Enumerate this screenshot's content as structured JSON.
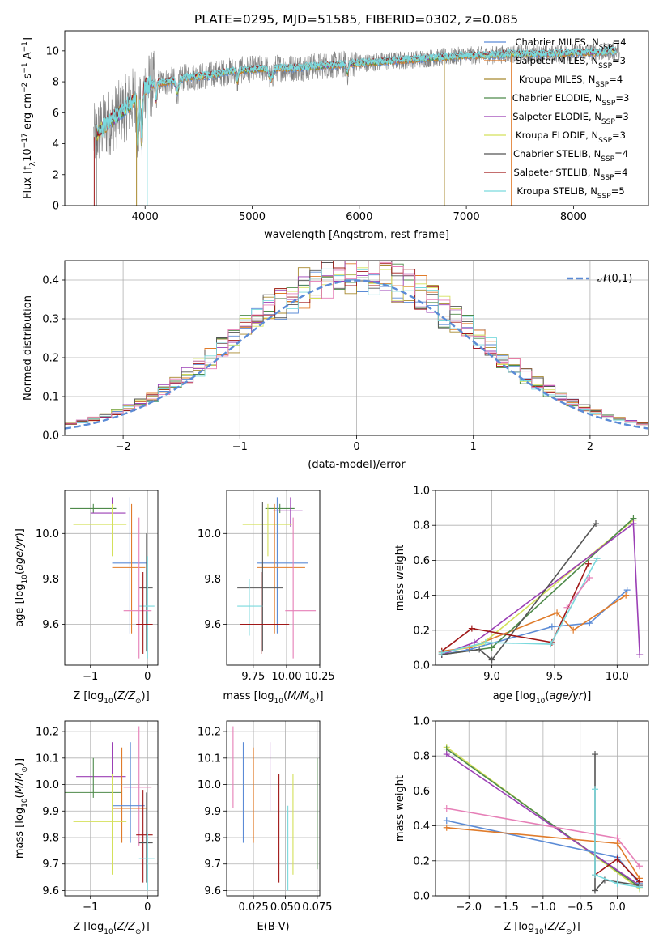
{
  "title": "PLATE=0295, MJD=51585, FIBERID=0302, z=0.085",
  "colors": {
    "chabrier_miles": "#5b8bd6",
    "salpeter_miles": "#e07b2a",
    "kroupa_miles": "#a8892e",
    "chabrier_elodie": "#4e8a4a",
    "salpeter_elodie": "#9b3fb5",
    "kroupa_elodie": "#d4e05a",
    "chabrier_stelib": "#555555",
    "salpeter_stelib": "#a01818",
    "kroupa_stelib": "#7ad9dd",
    "pink": "#e67fb7",
    "data": "#808080",
    "normal": "#5b8bd6",
    "grid": "#b0b0b0"
  },
  "chart_data": [
    {
      "id": "spectrum",
      "type": "line",
      "xlabel": "wavelength [Angstrom, rest frame]",
      "ylabel": "Flux [f",
      "xlim": [
        3250,
        8700
      ],
      "ylim": [
        0,
        11.3
      ],
      "xticks": [
        4000,
        5000,
        6000,
        7000,
        8000
      ],
      "yticks": [
        0,
        2,
        4,
        6,
        8,
        10
      ],
      "grid": false,
      "legend_position": "right",
      "legend": [
        {
          "key": "chabrier_miles",
          "label": "Chabrier MILES, N",
          "sub": "SSP",
          "suffix": "=4"
        },
        {
          "key": "salpeter_miles",
          "label": "Salpeter MILES, N",
          "sub": "SSP",
          "suffix": "=3"
        },
        {
          "key": "kroupa_miles",
          "label": "Kroupa MILES, N",
          "sub": "SSP",
          "suffix": "=4"
        },
        {
          "key": "chabrier_elodie",
          "label": "Chabrier ELODIE, N",
          "sub": "SSP",
          "suffix": "=3"
        },
        {
          "key": "salpeter_elodie",
          "label": "Salpeter ELODIE, N",
          "sub": "SSP",
          "suffix": "=3"
        },
        {
          "key": "kroupa_elodie",
          "label": "Kroupa ELODIE, N",
          "sub": "SSP",
          "suffix": "=3"
        },
        {
          "key": "chabrier_stelib",
          "label": "Chabrier STELIB, N",
          "sub": "SSP",
          "suffix": "=4"
        },
        {
          "key": "salpeter_stelib",
          "label": "Salpeter STELIB, N",
          "sub": "SSP",
          "suffix": "=4"
        },
        {
          "key": "kroupa_stelib",
          "label": "Kroupa STELIB, N",
          "sub": "SSP",
          "suffix": "=5"
        }
      ],
      "continuum": [
        [
          3520,
          4.4
        ],
        [
          3600,
          5.0
        ],
        [
          3700,
          5.6
        ],
        [
          3800,
          6.2
        ],
        [
          3900,
          6.9
        ],
        [
          3950,
          7.4
        ],
        [
          4000,
          7.7
        ],
        [
          4100,
          7.9
        ],
        [
          4200,
          8.0
        ],
        [
          4400,
          8.3
        ],
        [
          4600,
          8.4
        ],
        [
          4800,
          8.7
        ],
        [
          5000,
          8.8
        ],
        [
          5200,
          8.9
        ],
        [
          5400,
          8.9
        ],
        [
          5600,
          9.0
        ],
        [
          5800,
          9.1
        ],
        [
          6000,
          9.2
        ],
        [
          6200,
          9.3
        ],
        [
          6400,
          9.4
        ],
        [
          6600,
          9.5
        ],
        [
          6800,
          9.6
        ],
        [
          7000,
          9.7
        ],
        [
          7200,
          9.7
        ],
        [
          7400,
          9.8
        ],
        [
          7600,
          9.8
        ],
        [
          7800,
          9.8
        ],
        [
          8000,
          9.9
        ],
        [
          8200,
          9.9
        ],
        [
          8400,
          10.0
        ]
      ]
    },
    {
      "id": "residuals",
      "type": "histogram",
      "xlabel": "(data-model)/error",
      "ylabel": "Normed distribution",
      "xlim": [
        -2.5,
        2.5
      ],
      "ylim": [
        0,
        0.45
      ],
      "xticks": [
        -2,
        -1,
        0,
        1,
        2
      ],
      "yticks": [
        0.0,
        0.1,
        0.2,
        0.3,
        0.4
      ],
      "grid": true,
      "legend_position": "top-right",
      "normal_label": "𝒩(0,1)",
      "bin_width": 0.1
    },
    {
      "id": "age_vs_Z",
      "type": "errorbar",
      "xlabel": "Z [log",
      "ylabel": "age  [log",
      "xlim": [
        -1.45,
        0.18
      ],
      "ylim": [
        9.42,
        10.19
      ],
      "xticks": [
        -1,
        0
      ],
      "yticks": [
        9.6,
        9.8,
        10.0
      ],
      "grid": true,
      "points": [
        {
          "c": "chabrier_elodie",
          "x": -0.95,
          "xe": [
            -1.35,
            -0.55
          ],
          "y": 10.11,
          "ye": [
            10.09,
            10.13
          ]
        },
        {
          "c": "salpeter_elodie",
          "x": -0.62,
          "xe": [
            -1.0,
            -0.38
          ],
          "y": 10.09,
          "ye": [
            10.03,
            10.16
          ]
        },
        {
          "c": "kroupa_elodie",
          "x": -0.62,
          "xe": [
            -1.3,
            -0.37
          ],
          "y": 10.04,
          "ye": [
            9.9,
            10.13
          ]
        },
        {
          "c": "chabrier_miles",
          "x": -0.31,
          "xe": [
            -0.62,
            -0.02
          ],
          "y": 9.87,
          "ye": [
            9.56,
            10.16
          ]
        },
        {
          "c": "salpeter_miles",
          "x": -0.28,
          "xe": [
            -0.62,
            -0.04
          ],
          "y": 9.85,
          "ye": [
            9.56,
            10.13
          ]
        },
        {
          "c": "chabrier_stelib",
          "x": -0.02,
          "xe": [
            -0.15,
            0.09
          ],
          "y": 9.76,
          "ye": [
            9.48,
            10.0
          ]
        },
        {
          "c": "kroupa_stelib",
          "x": 0.0,
          "xe": [
            -0.15,
            0.12
          ],
          "y": 9.68,
          "ye": [
            9.45,
            9.9
          ]
        },
        {
          "c": "pink",
          "x": -0.15,
          "xe": [
            -0.42,
            0.07
          ],
          "y": 9.66,
          "ye": [
            9.45,
            10.07
          ]
        },
        {
          "c": "salpeter_stelib",
          "x": -0.08,
          "xe": [
            -0.2,
            0.09
          ],
          "y": 9.6,
          "ye": [
            9.47,
            9.83
          ]
        }
      ]
    },
    {
      "id": "age_vs_mass",
      "type": "errorbar",
      "xlabel": "mass [log",
      "ylabel": "",
      "xlim": [
        9.55,
        10.25
      ],
      "ylim": [
        9.42,
        10.19
      ],
      "xticks": [
        9.75,
        10.0,
        10.25
      ],
      "yticks": [
        9.6,
        9.8,
        10.0
      ],
      "grid": true,
      "points": [
        {
          "c": "chabrier_elodie",
          "x": 9.95,
          "xe": [
            9.84,
            10.06
          ],
          "y": 10.11,
          "ye": [
            10.09,
            10.13
          ]
        },
        {
          "c": "salpeter_elodie",
          "x": 10.03,
          "xe": [
            9.9,
            10.12
          ],
          "y": 10.1,
          "ye": [
            10.03,
            10.16
          ]
        },
        {
          "c": "kroupa_elodie",
          "x": 9.86,
          "xe": [
            9.67,
            10.04
          ],
          "y": 10.04,
          "ye": [
            9.9,
            10.13
          ]
        },
        {
          "c": "chabrier_miles",
          "x": 9.93,
          "xe": [
            9.78,
            10.16
          ],
          "y": 9.87,
          "ye": [
            9.56,
            10.16
          ]
        },
        {
          "c": "salpeter_miles",
          "x": 9.91,
          "xe": [
            9.78,
            10.14
          ],
          "y": 9.85,
          "ye": [
            9.56,
            10.13
          ]
        },
        {
          "c": "chabrier_stelib",
          "x": 9.82,
          "xe": [
            9.63,
            9.97
          ],
          "y": 9.76,
          "ye": [
            9.48,
            10.14
          ]
        },
        {
          "c": "kroupa_stelib",
          "x": 9.72,
          "xe": [
            9.63,
            9.82
          ],
          "y": 9.68,
          "ye": [
            9.55,
            9.8
          ]
        },
        {
          "c": "pink",
          "x": 10.05,
          "xe": [
            9.99,
            10.22
          ],
          "y": 9.66,
          "ye": [
            9.45,
            10.07
          ]
        },
        {
          "c": "salpeter_stelib",
          "x": 9.81,
          "xe": [
            9.65,
            10.02
          ],
          "y": 9.6,
          "ye": [
            9.47,
            9.83
          ]
        }
      ]
    },
    {
      "id": "weight_vs_age",
      "type": "line",
      "xlabel": "age  [log",
      "ylabel": "mass weight",
      "xlim": [
        8.55,
        10.25
      ],
      "ylim": [
        0,
        1.0
      ],
      "xticks": [
        9.0,
        9.5,
        10.0
      ],
      "yticks": [
        0.0,
        0.2,
        0.4,
        0.6,
        0.8,
        1.0
      ],
      "grid": true,
      "series": [
        {
          "c": "chabrier_miles",
          "x": [
            8.6,
            8.82,
            9.48,
            9.78,
            10.08
          ],
          "y": [
            0.06,
            0.09,
            0.22,
            0.24,
            0.43
          ]
        },
        {
          "c": "salpeter_miles",
          "x": [
            8.6,
            8.82,
            9.52,
            9.65,
            10.07
          ],
          "y": [
            0.08,
            0.1,
            0.3,
            0.2,
            0.4
          ]
        },
        {
          "c": "kroupa_elodie",
          "x": [
            8.6,
            8.92,
            10.13
          ],
          "y": [
            0.07,
            0.12,
            0.83
          ]
        },
        {
          "c": "chabrier_elodie",
          "x": [
            8.6,
            9.0,
            10.13
          ],
          "y": [
            0.06,
            0.1,
            0.84
          ]
        },
        {
          "c": "salpeter_elodie",
          "x": [
            8.6,
            8.86,
            10.13,
            10.18
          ],
          "y": [
            0.06,
            0.13,
            0.81,
            0.06
          ]
        },
        {
          "c": "chabrier_stelib",
          "x": [
            8.6,
            8.9,
            9.0,
            9.83
          ],
          "y": [
            0.06,
            0.09,
            0.03,
            0.81
          ]
        },
        {
          "c": "salpeter_stelib",
          "x": [
            8.6,
            8.84,
            9.48,
            9.77
          ],
          "y": [
            0.08,
            0.21,
            0.13,
            0.58
          ]
        },
        {
          "c": "kroupa_stelib",
          "x": [
            8.6,
            8.95,
            9.47,
            9.84
          ],
          "y": [
            0.07,
            0.13,
            0.12,
            0.61
          ]
        },
        {
          "c": "pink",
          "x": [
            9.6,
            9.78
          ],
          "y": [
            0.33,
            0.5
          ]
        }
      ]
    },
    {
      "id": "mass_vs_Z",
      "type": "errorbar",
      "xlabel": "Z [log",
      "ylabel": "mass [log",
      "xlim": [
        -1.45,
        0.18
      ],
      "ylim": [
        9.58,
        10.24
      ],
      "xticks": [
        -1,
        0
      ],
      "yticks": [
        9.6,
        9.7,
        9.8,
        9.9,
        10.0,
        10.1,
        10.2
      ],
      "grid": true,
      "points": [
        {
          "c": "salpeter_elodie",
          "x": -0.62,
          "xe": [
            -1.25,
            -0.38
          ],
          "y": 10.03,
          "ye": [
            9.9,
            10.16
          ]
        },
        {
          "c": "pink",
          "x": -0.15,
          "xe": [
            -0.42,
            0.07
          ],
          "y": 9.99,
          "ye": [
            9.77,
            10.22
          ]
        },
        {
          "c": "chabrier_elodie",
          "x": -0.95,
          "xe": [
            -1.45,
            -0.45
          ],
          "y": 9.97,
          "ye": [
            9.95,
            10.1
          ]
        },
        {
          "c": "salpeter_miles",
          "x": -0.45,
          "xe": [
            -0.6,
            -0.02
          ],
          "y": 9.91,
          "ye": [
            9.78,
            10.14
          ]
        },
        {
          "c": "chabrier_miles",
          "x": -0.3,
          "xe": [
            -0.62,
            -0.05
          ],
          "y": 9.92,
          "ye": [
            9.78,
            10.16
          ]
        },
        {
          "c": "kroupa_elodie",
          "x": -0.62,
          "xe": [
            -1.3,
            -0.37
          ],
          "y": 9.86,
          "ye": [
            9.66,
            10.04
          ]
        },
        {
          "c": "salpeter_stelib",
          "x": -0.08,
          "xe": [
            -0.2,
            0.09
          ],
          "y": 9.81,
          "ye": [
            9.63,
            9.98
          ]
        },
        {
          "c": "chabrier_stelib",
          "x": -0.02,
          "xe": [
            -0.15,
            0.09
          ],
          "y": 9.78,
          "ye": [
            9.63,
            9.97
          ]
        },
        {
          "c": "kroupa_stelib",
          "x": 0.0,
          "xe": [
            -0.15,
            0.12
          ],
          "y": 9.72,
          "ye": [
            9.6,
            9.82
          ]
        }
      ]
    },
    {
      "id": "mass_vs_ebv",
      "type": "errorbar",
      "xlabel": "E(B-V)",
      "ylabel": "",
      "xlim": [
        0.004,
        0.077
      ],
      "ylim": [
        9.58,
        10.24
      ],
      "xticks": [
        0.025,
        0.05,
        0.075
      ],
      "yticks": [
        9.6,
        9.7,
        9.8,
        9.9,
        10.0,
        10.1,
        10.2
      ],
      "grid": true,
      "points": [
        {
          "c": "pink",
          "x": 0.009,
          "y": 10.05,
          "ye": [
            9.91,
            10.22
          ]
        },
        {
          "c": "chabrier_miles",
          "x": 0.017,
          "y": 9.95,
          "ye": [
            9.78,
            10.16
          ]
        },
        {
          "c": "salpeter_miles",
          "x": 0.025,
          "y": 9.94,
          "ye": [
            9.78,
            10.14
          ]
        },
        {
          "c": "salpeter_elodie",
          "x": 0.038,
          "y": 10.03,
          "ye": [
            9.9,
            10.16
          ]
        },
        {
          "c": "salpeter_stelib",
          "x": 0.045,
          "y": 9.85,
          "ye": [
            9.63,
            10.04
          ]
        },
        {
          "c": "kroupa_stelib",
          "x": 0.052,
          "y": 9.72,
          "ye": [
            9.6,
            9.92
          ]
        },
        {
          "c": "kroupa_elodie",
          "x": 0.056,
          "y": 9.85,
          "ye": [
            9.66,
            10.04
          ]
        },
        {
          "c": "chabrier_elodie",
          "x": 0.075,
          "y": 9.88,
          "ye": [
            9.68,
            10.1
          ]
        }
      ]
    },
    {
      "id": "weight_vs_Z",
      "type": "line",
      "xlabel": "Z [log",
      "ylabel": "mass weight",
      "xlim": [
        -2.45,
        0.42
      ],
      "ylim": [
        0,
        1.0
      ],
      "xticks": [
        -2.0,
        -1.5,
        -1.0,
        -0.5,
        0.0
      ],
      "yticks": [
        0.0,
        0.2,
        0.4,
        0.6,
        0.8,
        1.0
      ],
      "grid": true,
      "series": [
        {
          "c": "kroupa_elodie",
          "x": [
            -2.3,
            0.3
          ],
          "y": [
            0.85,
            0.04
          ]
        },
        {
          "c": "chabrier_elodie",
          "x": [
            -2.3,
            0.3
          ],
          "y": [
            0.84,
            0.05
          ]
        },
        {
          "c": "salpeter_elodie",
          "x": [
            -2.3,
            0.3
          ],
          "y": [
            0.81,
            0.06
          ]
        },
        {
          "c": "pink",
          "x": [
            -2.3,
            0.0,
            0.3
          ],
          "y": [
            0.5,
            0.33,
            0.17
          ]
        },
        {
          "c": "chabrier_miles",
          "x": [
            -2.3,
            0.0,
            0.3
          ],
          "y": [
            0.43,
            0.22,
            0.07
          ]
        },
        {
          "c": "salpeter_miles",
          "x": [
            -2.3,
            0.0,
            0.3
          ],
          "y": [
            0.39,
            0.3,
            0.1
          ]
        },
        {
          "c": "chabrier_stelib",
          "x": [
            -0.3,
            -0.3,
            -0.17,
            0.3
          ],
          "y": [
            0.81,
            0.03,
            0.09,
            0.06
          ]
        },
        {
          "c": "salpeter_stelib",
          "x": [
            -0.3,
            0.0,
            0.3
          ],
          "y": [
            0.12,
            0.21,
            0.08
          ]
        },
        {
          "c": "kroupa_stelib",
          "x": [
            -0.3,
            -0.3,
            0.0,
            0.3
          ],
          "y": [
            0.61,
            0.12,
            0.07,
            0.05
          ]
        }
      ]
    }
  ]
}
